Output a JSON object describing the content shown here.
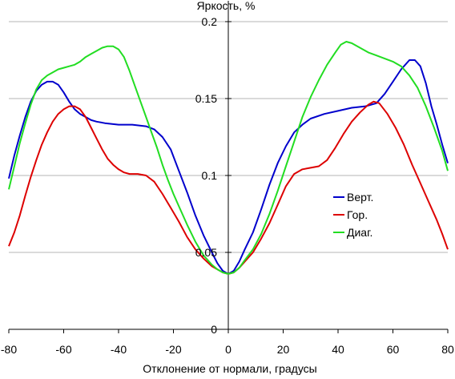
{
  "chart_data": {
    "type": "line",
    "title": "",
    "xlabel": "Отклонение от нормали, градусы",
    "ylabel": "Яркость, %",
    "xlim": [
      -80,
      80
    ],
    "ylim": [
      0,
      0.2
    ],
    "x_ticks": [
      -80,
      -60,
      -40,
      -20,
      0,
      20,
      40,
      60,
      80
    ],
    "y_ticks": [
      0,
      0.05,
      0.1,
      0.15,
      0.2
    ],
    "x_tick_labels": [
      "-80",
      "-60",
      "-40",
      "-20",
      "0",
      "20",
      "40",
      "60",
      "80"
    ],
    "y_tick_labels": [
      "0",
      "0.05",
      "0.1",
      "0.15",
      "0.2"
    ],
    "grid": "horizontal",
    "legend_position": "center-right",
    "series": [
      {
        "name": "Верт.",
        "color": "#0000cc",
        "points": [
          [
            -80,
            0.098
          ],
          [
            -78,
            0.113
          ],
          [
            -76,
            0.126
          ],
          [
            -74,
            0.138
          ],
          [
            -72,
            0.148
          ],
          [
            -70,
            0.155
          ],
          [
            -68,
            0.159
          ],
          [
            -66,
            0.161
          ],
          [
            -64,
            0.161
          ],
          [
            -62,
            0.159
          ],
          [
            -60,
            0.154
          ],
          [
            -58,
            0.148
          ],
          [
            -56,
            0.143
          ],
          [
            -54,
            0.14
          ],
          [
            -52,
            0.138
          ],
          [
            -50,
            0.136
          ],
          [
            -48,
            0.135
          ],
          [
            -45,
            0.134
          ],
          [
            -40,
            0.133
          ],
          [
            -35,
            0.133
          ],
          [
            -30,
            0.132
          ],
          [
            -27,
            0.13
          ],
          [
            -24,
            0.125
          ],
          [
            -21,
            0.117
          ],
          [
            -18,
            0.103
          ],
          [
            -15,
            0.089
          ],
          [
            -12,
            0.074
          ],
          [
            -9,
            0.061
          ],
          [
            -6,
            0.05
          ],
          [
            -4,
            0.043
          ],
          [
            -2,
            0.038
          ],
          [
            0,
            0.036
          ],
          [
            2,
            0.038
          ],
          [
            4,
            0.044
          ],
          [
            6,
            0.052
          ],
          [
            9,
            0.063
          ],
          [
            12,
            0.078
          ],
          [
            15,
            0.094
          ],
          [
            18,
            0.108
          ],
          [
            21,
            0.119
          ],
          [
            24,
            0.128
          ],
          [
            27,
            0.133
          ],
          [
            30,
            0.137
          ],
          [
            35,
            0.14
          ],
          [
            40,
            0.142
          ],
          [
            45,
            0.144
          ],
          [
            50,
            0.145
          ],
          [
            54,
            0.147
          ],
          [
            57,
            0.153
          ],
          [
            60,
            0.161
          ],
          [
            63,
            0.169
          ],
          [
            66,
            0.175
          ],
          [
            68,
            0.175
          ],
          [
            70,
            0.171
          ],
          [
            72,
            0.16
          ],
          [
            74,
            0.145
          ],
          [
            76,
            0.133
          ],
          [
            78,
            0.12
          ],
          [
            80,
            0.108
          ]
        ]
      },
      {
        "name": "Гор.",
        "color": "#dd0000",
        "points": [
          [
            -80,
            0.054
          ],
          [
            -78,
            0.063
          ],
          [
            -76,
            0.074
          ],
          [
            -74,
            0.087
          ],
          [
            -72,
            0.099
          ],
          [
            -70,
            0.11
          ],
          [
            -68,
            0.12
          ],
          [
            -66,
            0.128
          ],
          [
            -64,
            0.135
          ],
          [
            -62,
            0.14
          ],
          [
            -60,
            0.143
          ],
          [
            -58,
            0.145
          ],
          [
            -56,
            0.145
          ],
          [
            -54,
            0.143
          ],
          [
            -52,
            0.138
          ],
          [
            -50,
            0.131
          ],
          [
            -48,
            0.124
          ],
          [
            -46,
            0.117
          ],
          [
            -44,
            0.111
          ],
          [
            -42,
            0.107
          ],
          [
            -40,
            0.104
          ],
          [
            -38,
            0.102
          ],
          [
            -36,
            0.101
          ],
          [
            -33,
            0.101
          ],
          [
            -30,
            0.1
          ],
          [
            -27,
            0.096
          ],
          [
            -24,
            0.088
          ],
          [
            -21,
            0.079
          ],
          [
            -18,
            0.07
          ],
          [
            -15,
            0.06
          ],
          [
            -12,
            0.052
          ],
          [
            -9,
            0.046
          ],
          [
            -6,
            0.041
          ],
          [
            -4,
            0.039
          ],
          [
            -2,
            0.037
          ],
          [
            0,
            0.036
          ],
          [
            2,
            0.037
          ],
          [
            4,
            0.04
          ],
          [
            6,
            0.044
          ],
          [
            9,
            0.05
          ],
          [
            12,
            0.059
          ],
          [
            15,
            0.069
          ],
          [
            18,
            0.081
          ],
          [
            21,
            0.093
          ],
          [
            24,
            0.101
          ],
          [
            27,
            0.104
          ],
          [
            30,
            0.105
          ],
          [
            33,
            0.106
          ],
          [
            36,
            0.11
          ],
          [
            39,
            0.118
          ],
          [
            42,
            0.127
          ],
          [
            45,
            0.135
          ],
          [
            48,
            0.141
          ],
          [
            51,
            0.146
          ],
          [
            53,
            0.148
          ],
          [
            55,
            0.147
          ],
          [
            58,
            0.14
          ],
          [
            61,
            0.131
          ],
          [
            64,
            0.12
          ],
          [
            67,
            0.107
          ],
          [
            70,
            0.095
          ],
          [
            73,
            0.083
          ],
          [
            76,
            0.071
          ],
          [
            78,
            0.062
          ],
          [
            80,
            0.052
          ]
        ]
      },
      {
        "name": "Диаг.",
        "color": "#22dd22",
        "points": [
          [
            -80,
            0.091
          ],
          [
            -78,
            0.106
          ],
          [
            -76,
            0.121
          ],
          [
            -74,
            0.134
          ],
          [
            -72,
            0.146
          ],
          [
            -70,
            0.156
          ],
          [
            -68,
            0.162
          ],
          [
            -66,
            0.165
          ],
          [
            -64,
            0.167
          ],
          [
            -62,
            0.169
          ],
          [
            -60,
            0.17
          ],
          [
            -58,
            0.171
          ],
          [
            -56,
            0.172
          ],
          [
            -54,
            0.174
          ],
          [
            -52,
            0.177
          ],
          [
            -50,
            0.179
          ],
          [
            -48,
            0.181
          ],
          [
            -46,
            0.183
          ],
          [
            -44,
            0.184
          ],
          [
            -42,
            0.184
          ],
          [
            -40,
            0.182
          ],
          [
            -38,
            0.177
          ],
          [
            -36,
            0.168
          ],
          [
            -34,
            0.158
          ],
          [
            -32,
            0.148
          ],
          [
            -30,
            0.138
          ],
          [
            -28,
            0.128
          ],
          [
            -26,
            0.118
          ],
          [
            -24,
            0.107
          ],
          [
            -22,
            0.097
          ],
          [
            -20,
            0.088
          ],
          [
            -18,
            0.08
          ],
          [
            -15,
            0.068
          ],
          [
            -12,
            0.057
          ],
          [
            -9,
            0.048
          ],
          [
            -6,
            0.042
          ],
          [
            -4,
            0.039
          ],
          [
            -2,
            0.037
          ],
          [
            0,
            0.036
          ],
          [
            2,
            0.037
          ],
          [
            4,
            0.04
          ],
          [
            6,
            0.045
          ],
          [
            9,
            0.052
          ],
          [
            12,
            0.062
          ],
          [
            15,
            0.075
          ],
          [
            18,
            0.09
          ],
          [
            21,
            0.106
          ],
          [
            24,
            0.122
          ],
          [
            27,
            0.138
          ],
          [
            30,
            0.151
          ],
          [
            33,
            0.162
          ],
          [
            36,
            0.172
          ],
          [
            39,
            0.18
          ],
          [
            41,
            0.185
          ],
          [
            43,
            0.187
          ],
          [
            45,
            0.186
          ],
          [
            48,
            0.183
          ],
          [
            51,
            0.18
          ],
          [
            54,
            0.178
          ],
          [
            57,
            0.176
          ],
          [
            60,
            0.174
          ],
          [
            63,
            0.171
          ],
          [
            66,
            0.165
          ],
          [
            69,
            0.157
          ],
          [
            72,
            0.145
          ],
          [
            75,
            0.131
          ],
          [
            78,
            0.116
          ],
          [
            80,
            0.103
          ]
        ]
      }
    ]
  }
}
